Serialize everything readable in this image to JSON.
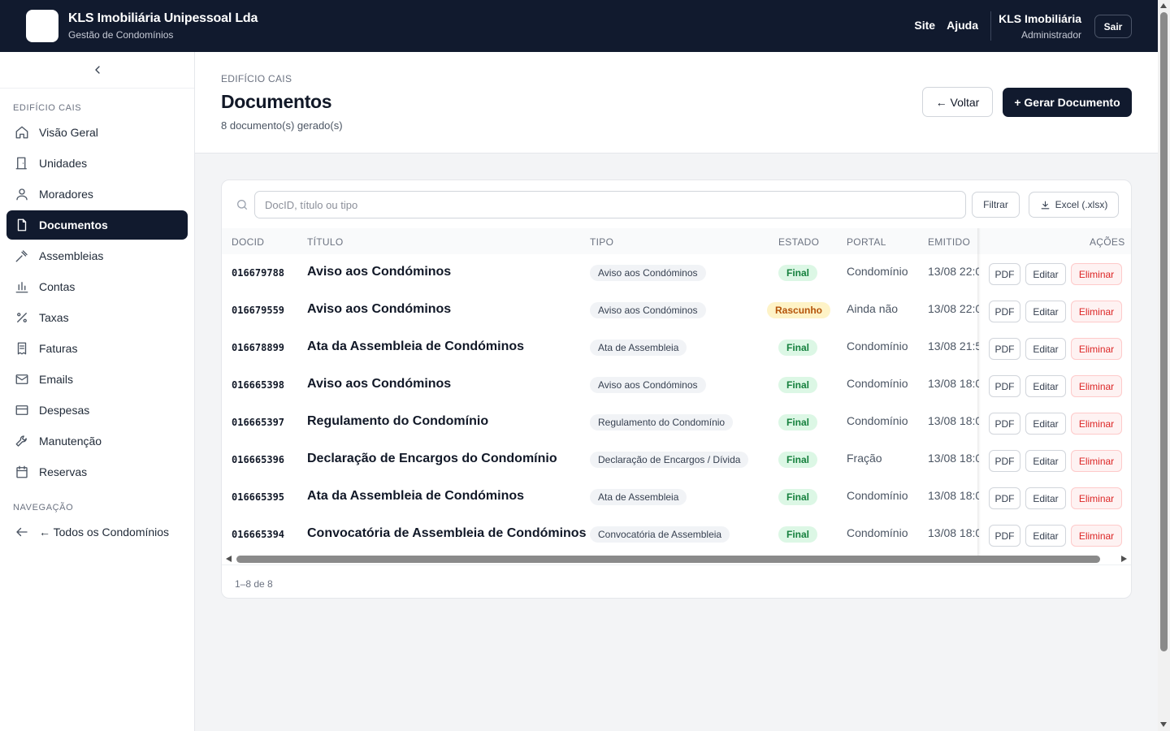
{
  "topbar": {
    "company": "KLS Imobiliária Unipessoal Lda",
    "subtitle": "Gestão de Condomínios",
    "links": [
      "Site",
      "Ajuda"
    ],
    "user_name": "KLS Imobiliária",
    "user_role": "Administrador",
    "logout_label": "Sair"
  },
  "sidebar": {
    "section_building": "EDIFÍCIO CAIS",
    "items": [
      {
        "label": "Visão Geral",
        "icon": "home-icon"
      },
      {
        "label": "Unidades",
        "icon": "door-icon"
      },
      {
        "label": "Moradores",
        "icon": "user-icon"
      },
      {
        "label": "Documentos",
        "icon": "file-icon",
        "active": true
      },
      {
        "label": "Assembleias",
        "icon": "gavel-icon"
      },
      {
        "label": "Contas",
        "icon": "bar-chart-icon"
      },
      {
        "label": "Taxas",
        "icon": "percent-icon"
      },
      {
        "label": "Faturas",
        "icon": "receipt-icon"
      },
      {
        "label": "Emails",
        "icon": "mail-icon"
      },
      {
        "label": "Despesas",
        "icon": "credit-card-icon"
      },
      {
        "label": "Manutenção",
        "icon": "wrench-icon"
      },
      {
        "label": "Reservas",
        "icon": "calendar-icon"
      }
    ],
    "section_nav": "NAVEGAÇÃO",
    "back_all": "← Todos os Condomínios"
  },
  "header": {
    "breadcrumb": "EDIFÍCIO CAIS",
    "title": "Documentos",
    "subtitle": "8 documento(s) gerado(s)",
    "back_label": "← Voltar",
    "generate_label": "+ Gerar Documento"
  },
  "toolbar": {
    "search_placeholder": "DocID, título ou tipo",
    "search_value": "",
    "filter_label": "Filtrar",
    "excel_label": "Excel (.xlsx)"
  },
  "table": {
    "columns": [
      "DOCID",
      "TÍTULO",
      "TIPO",
      "ESTADO",
      "PORTAL",
      "EMITIDO",
      "AÇÕES"
    ],
    "action_labels": {
      "pdf": "PDF",
      "edit": "Editar",
      "delete": "Eliminar"
    },
    "rows": [
      {
        "docid": "016679788",
        "title": "Aviso aos Condóminos",
        "tipo": "Aviso aos Condóminos",
        "estado": "Final",
        "portal": "Condomínio",
        "emitido": "13/08 22:0"
      },
      {
        "docid": "016679559",
        "title": "Aviso aos Condóminos",
        "tipo": "Aviso aos Condóminos",
        "estado": "Rascunho",
        "portal": "Ainda não",
        "emitido": "13/08 22:0"
      },
      {
        "docid": "016678899",
        "title": "Ata da Assembleia de Condóminos",
        "tipo": "Ata de Assembleia",
        "estado": "Final",
        "portal": "Condomínio",
        "emitido": "13/08 21:5"
      },
      {
        "docid": "016665398",
        "title": "Aviso aos Condóminos",
        "tipo": "Aviso aos Condóminos",
        "estado": "Final",
        "portal": "Condomínio",
        "emitido": "13/08 18:0"
      },
      {
        "docid": "016665397",
        "title": "Regulamento do Condomínio",
        "tipo": "Regulamento do Condomínio",
        "estado": "Final",
        "portal": "Condomínio",
        "emitido": "13/08 18:0"
      },
      {
        "docid": "016665396",
        "title": "Declaração de Encargos do Condomínio",
        "tipo": "Declaração de Encargos / Dívida",
        "estado": "Final",
        "portal": "Fração",
        "emitido": "13/08 18:0"
      },
      {
        "docid": "016665395",
        "title": "Ata da Assembleia de Condóminos",
        "tipo": "Ata de Assembleia",
        "estado": "Final",
        "portal": "Condomínio",
        "emitido": "13/08 18:0"
      },
      {
        "docid": "016665394",
        "title": "Convocatória de Assembleia de Condóminos",
        "tipo": "Convocatória de Assembleia",
        "estado": "Final",
        "portal": "Condomínio",
        "emitido": "13/08 18:0"
      }
    ]
  },
  "pagination": {
    "label": "1–8 de 8"
  },
  "colors": {
    "navy": "#111a2e",
    "final_bg": "#dcf7e5",
    "final_fg": "#15803d",
    "draft_bg": "#fef3c7",
    "draft_fg": "#b45309",
    "danger": "#dc2626"
  }
}
